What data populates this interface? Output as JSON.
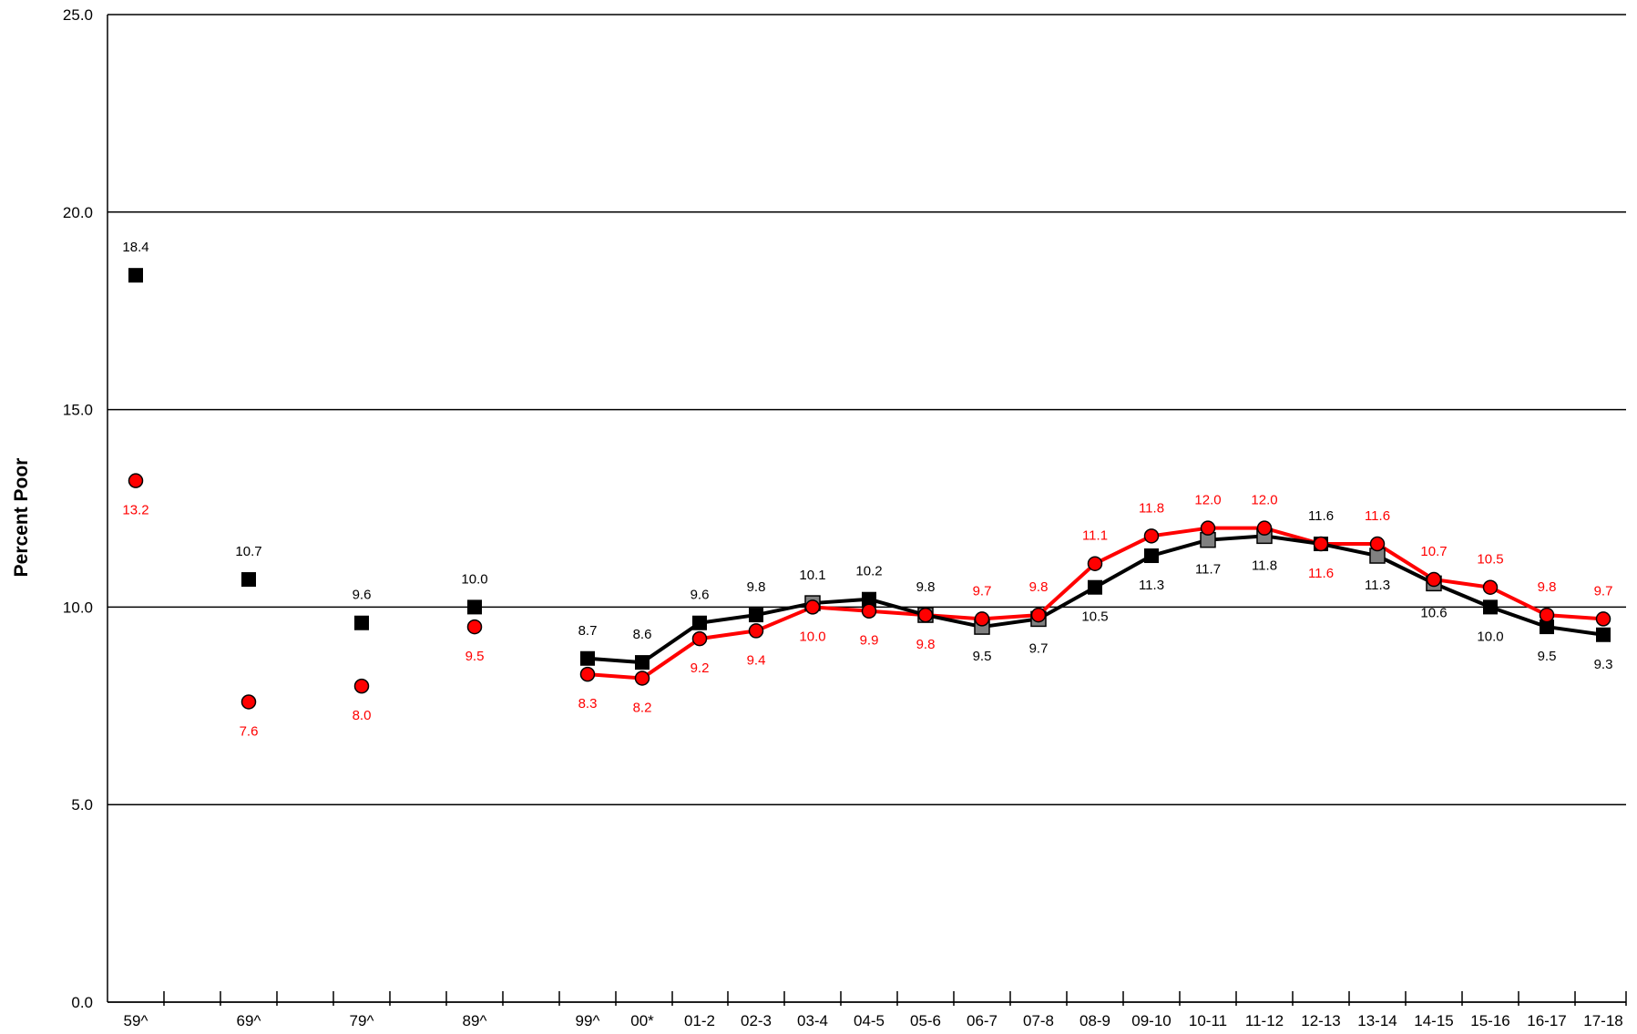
{
  "chart_data": {
    "type": "line",
    "ylabel": "Percent Poor",
    "xlabel": "",
    "ylim": [
      0,
      25
    ],
    "yticks": [
      "0.0",
      "5.0",
      "10.0",
      "15.0",
      "20.0",
      "25.0"
    ],
    "grid": "horizontal",
    "categories": [
      "59^",
      "69^",
      "79^",
      "89^",
      "99^",
      "00*",
      "01-2",
      "02-3",
      "03-4",
      "04-5",
      "05-6",
      "06-7",
      "07-8",
      "08-9",
      "09-10",
      "10-11",
      "11-12",
      "12-13",
      "13-14",
      "14-15",
      "15-16",
      "16-17",
      "17-18"
    ],
    "series": [
      {
        "marker": "square",
        "color": "#000000",
        "label_color": "#000000",
        "connected_from_index": 4,
        "hollow_gray_indices": [
          8,
          10,
          11,
          12,
          15,
          16,
          18,
          19
        ],
        "values": [
          18.4,
          10.7,
          9.6,
          10.0,
          8.7,
          8.6,
          9.6,
          9.8,
          10.1,
          10.2,
          9.8,
          9.5,
          9.7,
          10.5,
          11.3,
          11.7,
          11.8,
          11.6,
          11.3,
          10.6,
          10.0,
          9.5,
          9.3
        ],
        "labels": [
          "18.4",
          "10.7",
          "9.6",
          "10.0",
          "8.7",
          "8.6",
          "9.6",
          "9.8",
          "10.1",
          "10.2",
          "9.8",
          "9.5",
          "9.7",
          "10.5",
          "11.3",
          "11.7",
          "11.8",
          "11.6",
          "11.3",
          "10.6",
          "10.0",
          "9.5",
          "9.3"
        ]
      },
      {
        "marker": "circle",
        "color": "#ff0000",
        "label_color": "#ff0000",
        "connected_from_index": 4,
        "values": [
          13.2,
          7.6,
          8.0,
          9.5,
          8.3,
          8.2,
          9.2,
          9.4,
          10.0,
          9.9,
          9.8,
          9.7,
          9.8,
          11.1,
          11.8,
          12.0,
          12.0,
          11.6,
          11.6,
          10.7,
          10.5,
          9.8,
          9.7
        ],
        "labels": [
          "13.2",
          "7.6",
          "8.0",
          "9.5",
          "8.3",
          "8.2",
          "9.2",
          "9.4",
          "10.0",
          "9.9",
          "9.8",
          "9.7",
          "9.8",
          "11.1",
          "11.8",
          "12.0",
          "12.0",
          "11.6",
          "11.6",
          "10.7",
          "10.5",
          "9.8",
          "9.7"
        ]
      }
    ]
  }
}
